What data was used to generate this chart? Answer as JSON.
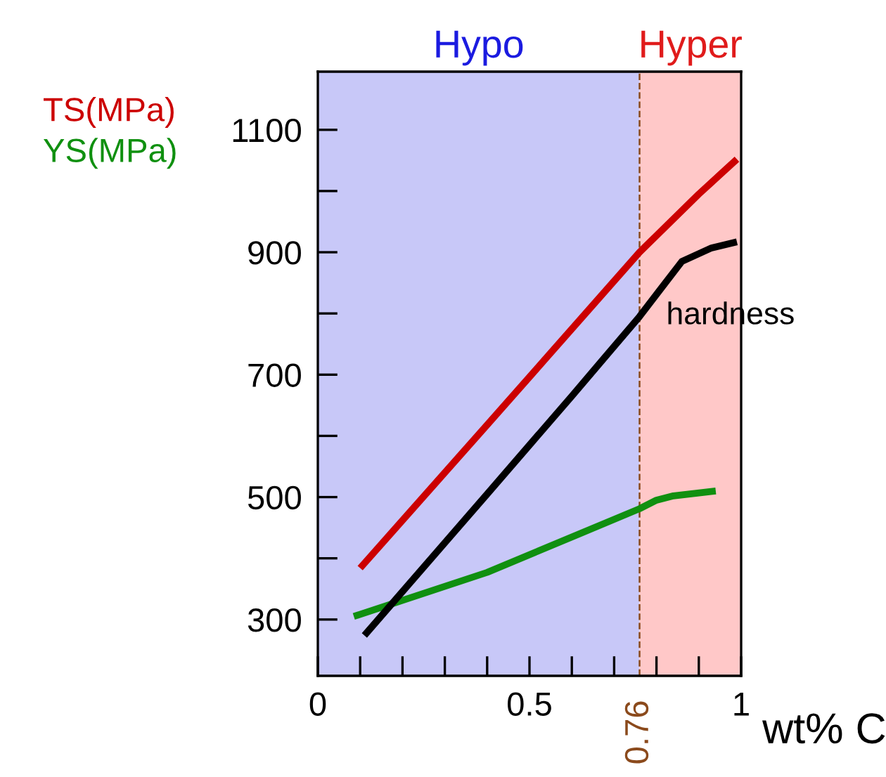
{
  "chart_data": {
    "type": "line",
    "xlabel": "wt% C",
    "xlim": [
      0,
      1
    ],
    "ylim": [
      208,
      1195
    ],
    "xticks": [
      0,
      {
        "value": 0.1,
        "label": null
      },
      {
        "value": 0.2,
        "label": null
      },
      {
        "value": 0.3,
        "label": null
      },
      {
        "value": 0.4,
        "label": null
      },
      0.5,
      {
        "value": 0.6,
        "label": null
      },
      {
        "value": 0.7,
        "label": null
      },
      {
        "value": 0.8,
        "label": null
      },
      {
        "value": 0.9,
        "label": null
      },
      1
    ],
    "yticks": [
      300,
      {
        "value": 400,
        "label": null
      },
      500,
      {
        "value": 600,
        "label": null
      },
      700,
      {
        "value": 800,
        "label": null
      },
      900,
      {
        "value": 1000,
        "label": null
      },
      1100
    ],
    "series": [
      {
        "name": "TS(MPa)",
        "color": "#cc0000",
        "x": [
          0.1,
          0.4,
          0.76,
          0.9,
          0.99
        ],
        "values": [
          384,
          618,
          900,
          995,
          1052
        ]
      },
      {
        "name": "YS(MPa)",
        "color": "#109010",
        "x": [
          0.085,
          0.4,
          0.76,
          0.8,
          0.84,
          0.94
        ],
        "values": [
          305,
          377,
          481,
          495,
          502,
          510
        ]
      },
      {
        "color": "#000000",
        "x": [
          0.11,
          0.4,
          0.6,
          0.76,
          0.81,
          0.86,
          0.93,
          0.99
        ],
        "values": [
          274,
          505,
          665,
          795,
          840,
          885,
          907,
          917
        ]
      }
    ],
    "bands": [
      {
        "axis": "x",
        "from": 0,
        "to": 0.76,
        "label": "Hypo",
        "color": "#c8c8f8"
      },
      {
        "axis": "x",
        "from": 0.76,
        "to": 1,
        "label": "Hyper",
        "color": "#ffc8c8"
      }
    ],
    "ref_lines": [
      {
        "axis": "x",
        "value": 0.76,
        "label": "0.76",
        "color": "#8b4a1c",
        "line_style": "dashed"
      }
    ],
    "annotations": [
      {
        "text": "hardness",
        "x": 0.86,
        "y": 885
      }
    ],
    "legend": "left",
    "grid": false,
    "marker": "none",
    "line_style": "solid"
  }
}
